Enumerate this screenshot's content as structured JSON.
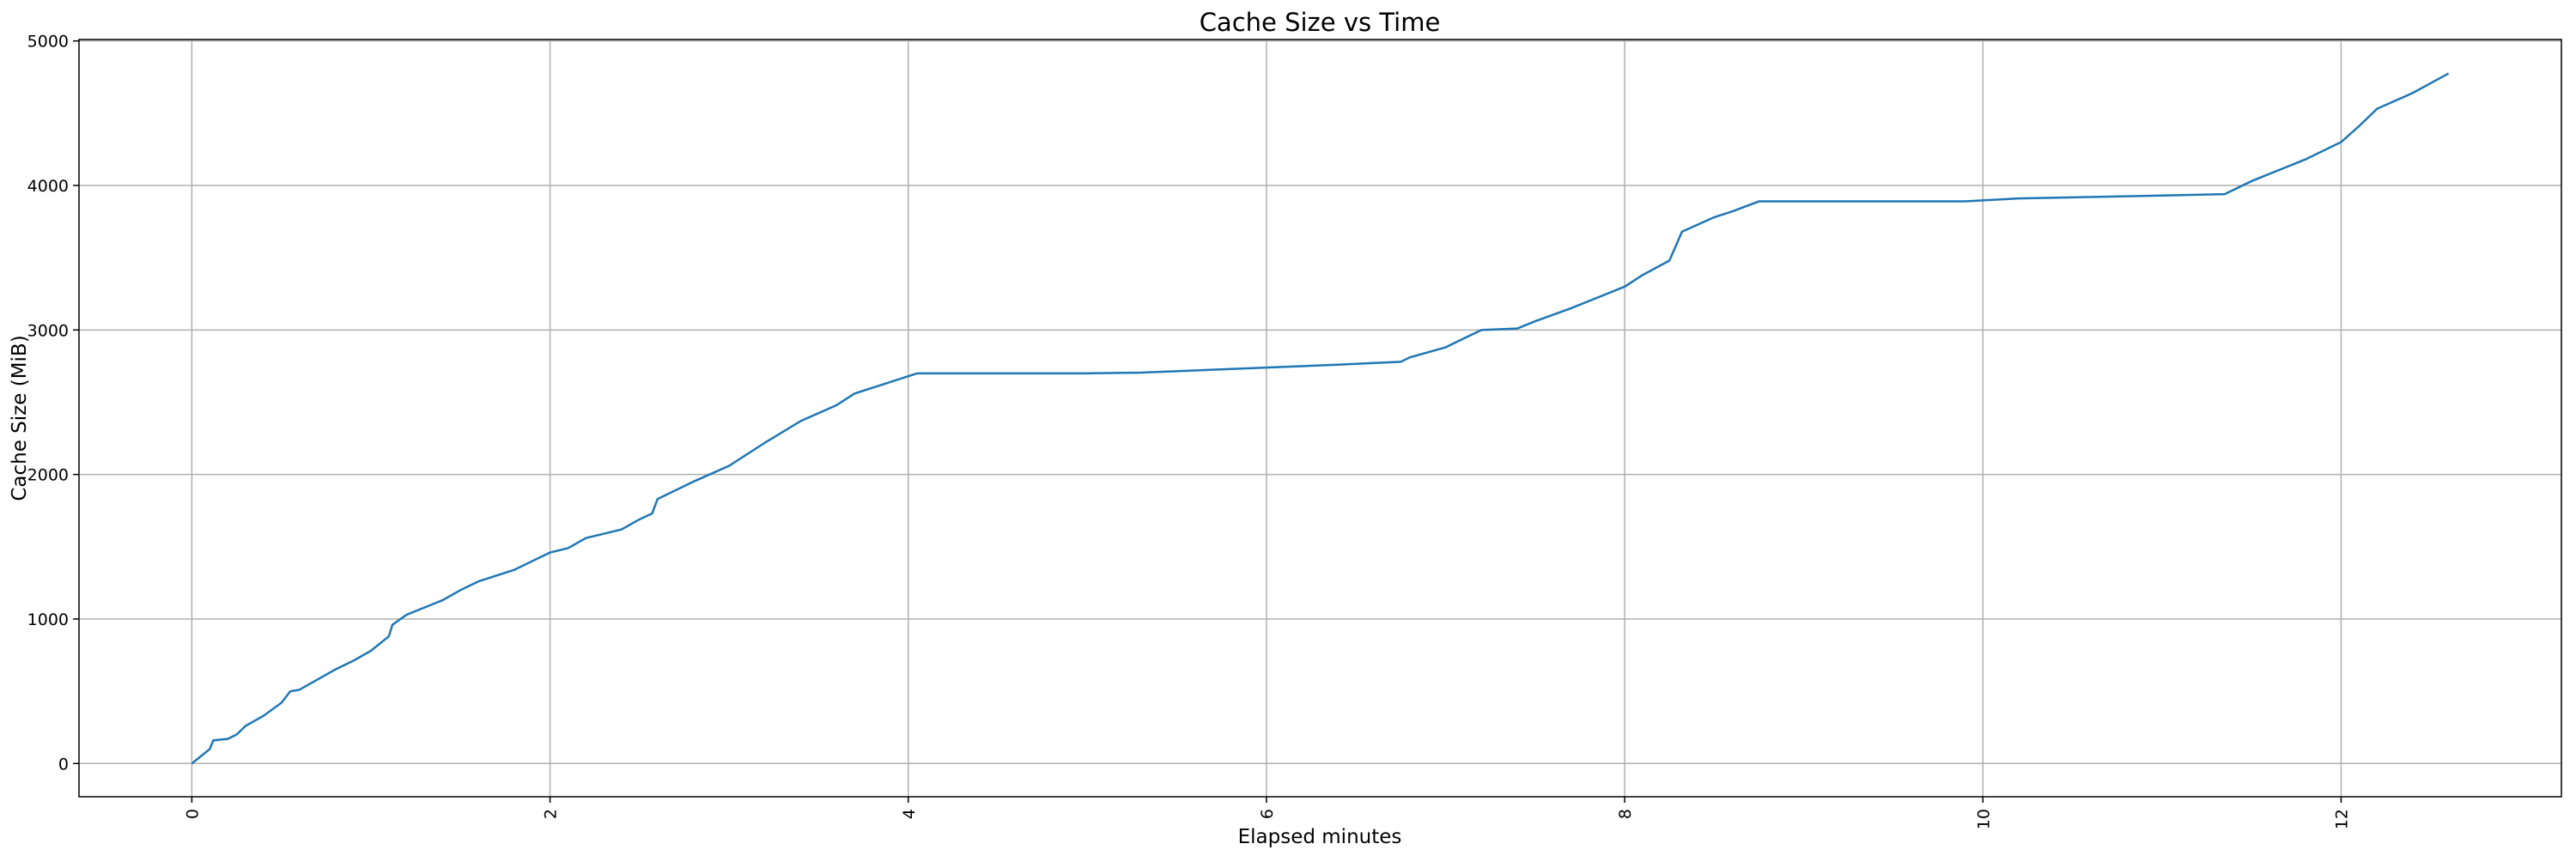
{
  "chart_data": {
    "type": "line",
    "title": "Cache Size vs Time",
    "xlabel": "Elapsed minutes",
    "ylabel": "Cache Size (MiB)",
    "x": [
      0,
      0.05,
      0.1,
      0.12,
      0.2,
      0.25,
      0.3,
      0.4,
      0.5,
      0.55,
      0.6,
      0.7,
      0.8,
      0.9,
      1.0,
      1.1,
      1.12,
      1.2,
      1.3,
      1.4,
      1.5,
      1.6,
      1.8,
      2.0,
      2.1,
      2.2,
      2.3,
      2.4,
      2.5,
      2.57,
      2.6,
      2.8,
      3.0,
      3.2,
      3.4,
      3.6,
      3.7,
      3.9,
      4.05,
      4.5,
      5.0,
      5.3,
      5.6,
      6.0,
      6.4,
      6.75,
      6.8,
      7.0,
      7.1,
      7.2,
      7.4,
      7.5,
      7.7,
      7.9,
      8.0,
      8.1,
      8.25,
      8.32,
      8.5,
      8.6,
      8.75,
      9.0,
      9.5,
      9.9,
      10.2,
      10.8,
      11.35,
      11.5,
      11.8,
      12.0,
      12.1,
      12.2,
      12.4,
      12.6
    ],
    "series": [
      {
        "name": "Cache Size",
        "color": "#1f77b4",
        "values": [
          0,
          50,
          100,
          160,
          170,
          200,
          260,
          330,
          420,
          500,
          510,
          580,
          650,
          710,
          780,
          880,
          960,
          1030,
          1080,
          1130,
          1200,
          1260,
          1340,
          1460,
          1490,
          1560,
          1590,
          1620,
          1690,
          1730,
          1830,
          1950,
          2060,
          2220,
          2370,
          2480,
          2560,
          2640,
          2700,
          2700,
          2700,
          2705,
          2720,
          2740,
          2760,
          2780,
          2810,
          2880,
          2940,
          3000,
          3010,
          3060,
          3150,
          3250,
          3300,
          3380,
          3480,
          3680,
          3780,
          3820,
          3890,
          3890,
          3890,
          3890,
          3910,
          3925,
          3940,
          4030,
          4180,
          4300,
          4410,
          4530,
          4640,
          4775
        ]
      }
    ],
    "xlim": [
      -0.63,
      13.23
    ],
    "ylim": [
      -230,
      5010
    ],
    "xticks": [
      0,
      2,
      4,
      6,
      8,
      10,
      12
    ],
    "yticks": [
      0,
      1000,
      2000,
      3000,
      4000,
      5000
    ],
    "grid": true
  }
}
